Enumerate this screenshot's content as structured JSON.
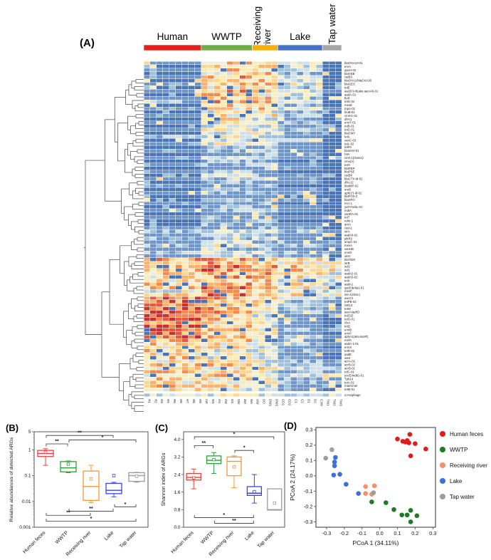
{
  "panels": {
    "a": "(A)",
    "b": "(B)",
    "c": "(C)",
    "d": "(D)"
  },
  "chart_data": [
    {
      "id": "heatmap",
      "type": "heatmap",
      "column_groups": [
        {
          "label": "Human",
          "color": "#e3211b",
          "samples": [
            "H1",
            "H2",
            "H3",
            "H4",
            "H5",
            "H6",
            "H7",
            "H8",
            "H9"
          ]
        },
        {
          "label": "WWTP",
          "color": "#6fad47",
          "samples": [
            "LW",
            "W1",
            "AS",
            "2W",
            "DS",
            "SW",
            "3W",
            "WA"
          ]
        },
        {
          "label": "Receiving river",
          "color": "#f2b10e",
          "samples": [
            "UW",
            "DO",
            "DW1",
            "DW2"
          ]
        },
        {
          "label": "Lake",
          "color": "#4472c4",
          "samples": [
            "CD1",
            "CD2",
            "C1",
            "C2",
            "D1",
            "D2",
            "CJW"
          ]
        },
        {
          "label": "Tap water",
          "color": "#a6a6a6",
          "samples": [
            "TW1",
            "TW2",
            "TW3"
          ]
        }
      ],
      "palette": [
        "#4a74b4",
        "#7096c7",
        "#9fc2da",
        "#cfe0e8",
        "#f3efd3",
        "#fdeab4",
        "#fcd693",
        "#fab26c",
        "#f28b52",
        "#e05b41",
        "#c43434"
      ],
      "legend_note": "",
      "rows": [
        [
          "blaOXA10-01",
          "16630"
        ],
        [
          "ereA",
          "06540"
        ],
        [
          "qacH-02",
          "16630"
        ],
        [
          "blaVEB",
          "05620"
        ],
        [
          "catB3",
          "17630"
        ],
        [
          "blaOXA1/blaOXA30",
          "06730"
        ],
        [
          "blaGES",
          "16640"
        ],
        [
          "tetE",
          "05520"
        ],
        [
          "aac(6')-Ib(aka aacA4)-01",
          "17631"
        ],
        [
          "aadA-01",
          "06530"
        ],
        [
          "floR",
          "16620"
        ],
        [
          "tetG-02",
          "27630"
        ],
        [
          "mexE",
          "06520"
        ],
        [
          "tnpA-01",
          "15631"
        ],
        [
          "lnuB-01",
          "04420"
        ],
        [
          "cmlA1-01",
          "15520"
        ],
        [
          "dfrA1",
          "05410"
        ],
        [
          "ermT-01",
          "14520"
        ],
        [
          "tetB-01",
          "04410"
        ],
        [
          "tetC-01",
          "14321"
        ],
        [
          "blaCMY",
          "03410"
        ],
        [
          "tetS",
          "24310"
        ],
        [
          "vanC-03",
          "03420"
        ],
        [
          "tetL-02",
          "14310"
        ],
        [
          "tetPA",
          "02210"
        ],
        [
          "blaSHV-01",
          "12310"
        ],
        [
          "folA",
          "01210"
        ],
        [
          "cintI-1(class1)",
          "13210"
        ],
        [
          "cmx(A)",
          "02100"
        ],
        [
          "tetH",
          "12310"
        ],
        [
          "blaPER",
          "01210"
        ],
        [
          "blaPSE",
          "12100"
        ],
        [
          "catB8",
          "03210"
        ],
        [
          "blaCTX-M-02",
          "12310"
        ],
        [
          "dfrA12",
          "02110"
        ],
        [
          "blaIMP-02",
          "11200"
        ],
        [
          "ereB",
          "02110"
        ],
        [
          "aph(2')-Id-02",
          "12210"
        ],
        [
          "blaFOX-2",
          "01100"
        ],
        [
          "blaSFO",
          "02110"
        ],
        [
          "mcr-1",
          "11200"
        ],
        [
          "yidY/mdtL-01",
          "02110"
        ],
        [
          "mdtA",
          "12210"
        ],
        [
          "vanRA-01",
          "01100"
        ],
        [
          "tetT",
          "12110"
        ],
        [
          "ndm-1",
          "01200"
        ],
        [
          "qnrA",
          "02110"
        ],
        [
          "catA1",
          "11210"
        ],
        [
          "strA",
          "23321"
        ],
        [
          "aadA9-01",
          "13210"
        ],
        [
          "pikR2",
          "22310"
        ],
        [
          "ampC-01",
          "13221"
        ],
        [
          "mexA",
          "24321"
        ],
        [
          "vanHB",
          "12210"
        ],
        [
          "emrD",
          "23321"
        ],
        [
          "oleC",
          "13210"
        ],
        [
          "blaTEM",
          "77765"
        ],
        [
          "strB",
          "67654"
        ],
        [
          "sul2",
          "78765"
        ],
        [
          "sul1",
          "68865"
        ],
        [
          "aadA2-01",
          "67754"
        ],
        [
          "aadA5-02",
          "57654"
        ],
        [
          "tetX",
          "56643"
        ],
        [
          "aadA1",
          "67654"
        ],
        [
          "qacEdelta1-01",
          "68754"
        ],
        [
          "mexF",
          "46643"
        ],
        [
          "intI-1(clinic)",
          "78754"
        ],
        [
          "aacC2",
          "87632"
        ],
        [
          "tetPB-01",
          "86521"
        ],
        [
          "IS613",
          "86524"
        ],
        [
          "tetW",
          "97521"
        ],
        [
          "aacA/aphD",
          "97521"
        ],
        [
          "tet(32)",
          "96410"
        ],
        [
          "tetO-01",
          "96410"
        ],
        [
          "cfxA",
          "85410"
        ],
        [
          "tetQ",
          "96410"
        ],
        [
          "ermB",
          "97521"
        ],
        [
          "ermF",
          "86410"
        ],
        [
          "aphA1(aka kanR)",
          "86521"
        ],
        [
          "mefA",
          "76410"
        ],
        [
          "aadA-1-01",
          "65421"
        ],
        [
          "ermX",
          "55310"
        ],
        [
          "tetR-02",
          "64421"
        ],
        [
          "aadE",
          "55310"
        ],
        [
          "sat4",
          "64310"
        ],
        [
          "acrA-02",
          "55422"
        ],
        [
          "acrB-02",
          "66421"
        ],
        [
          "acrB-01",
          "55532"
        ],
        [
          "tolC-01",
          "65421"
        ],
        [
          "yceE/mdtG-01",
          "56534"
        ],
        [
          "Tp614",
          "65421"
        ],
        [
          "tetA-02",
          "54521"
        ],
        [
          "matA/mel",
          "65410"
        ],
        [
          "tetM-01",
          "54310"
        ],
        [
          "crAssphage",
          "34423"
        ]
      ]
    },
    {
      "id": "box_abundance",
      "type": "box",
      "ylabel": "Relative abundances of detected ARGs",
      "yscale": "log",
      "ylim": [
        0.001,
        5
      ],
      "yticks": [
        "5",
        "1",
        "0.1",
        "0.01",
        "0.001"
      ],
      "ytick_values": [
        5,
        1,
        0.1,
        0.01,
        0.001
      ],
      "categories": [
        "Human feces",
        "WWTP",
        "Receiving river",
        "Lake",
        "Tap water"
      ],
      "colors": [
        "#e8413c",
        "#2e9e36",
        "#f79432",
        "#3545e8",
        "#9b9b9b"
      ],
      "boxes": [
        {
          "lo": 0.25,
          "q1": 0.55,
          "med": 0.72,
          "q3": 0.95,
          "hi": 1.1,
          "mean": 0.8
        },
        {
          "lo": 0.13,
          "q1": 0.14,
          "med": 0.2,
          "q3": 0.35,
          "hi": 0.37,
          "mean": 0.28
        },
        {
          "lo": 0.009,
          "q1": 0.011,
          "med": 0.038,
          "q3": 0.15,
          "hi": 0.25,
          "mean": 0.075
        },
        {
          "lo": 0.015,
          "q1": 0.02,
          "med": 0.027,
          "q3": 0.05,
          "hi": 0.055,
          "mean": 0.1
        },
        {
          "lo": 0.055,
          "q1": 0.06,
          "med": 0.1,
          "q3": 0.13,
          "hi": 0.135,
          "mean": 0.095
        }
      ],
      "significance": [
        {
          "a": 0,
          "b": 3,
          "stars": "**",
          "v": 3.6,
          "side": "top"
        },
        {
          "a": 1,
          "b": 4,
          "stars": "*",
          "v": 2.4,
          "side": "top"
        },
        {
          "a": 0,
          "b": 1,
          "stars": "**",
          "v": 1.7,
          "side": "top"
        },
        {
          "a": 3,
          "b": 4,
          "stars": "*",
          "v": 0.0062,
          "side": "bottom"
        },
        {
          "a": 1,
          "b": 3,
          "stars": "**",
          "v": 0.0042,
          "side": "bottom"
        },
        {
          "a": 0,
          "b": 2,
          "stars": "**",
          "v": 0.0029,
          "side": "bottom"
        },
        {
          "a": 0,
          "b": 4,
          "stars": "*",
          "v": 0.0017,
          "side": "bottom"
        }
      ]
    },
    {
      "id": "box_shannon",
      "type": "box",
      "ylabel": "Shannon index of ARGs",
      "yscale": "linear",
      "ylim": [
        0,
        4.35
      ],
      "yticks": [
        "0.0",
        "0.8",
        "1.6",
        "2.4",
        "3.2",
        "4.0"
      ],
      "ytick_values": [
        0,
        0.8,
        1.6,
        2.4,
        3.2,
        4.0
      ],
      "categories": [
        "Human feces",
        "WWTP",
        "Receiving river",
        "Lake",
        "Tap water"
      ],
      "colors": [
        "#e8413c",
        "#2e9e36",
        "#f79432",
        "#3545e8",
        "#9b9b9b"
      ],
      "boxes": [
        {
          "lo": 1.75,
          "q1": 2.15,
          "med": 2.27,
          "q3": 2.45,
          "hi": 2.65,
          "mean": 2.25
        },
        {
          "lo": 2.45,
          "q1": 2.9,
          "med": 3.05,
          "q3": 3.25,
          "hi": 3.4,
          "mean": 3.08
        },
        {
          "lo": 1.8,
          "q1": 2.35,
          "med": 3.0,
          "q3": 3.2,
          "hi": 3.25,
          "mean": 2.75
        },
        {
          "lo": 1.1,
          "q1": 1.45,
          "med": 1.55,
          "q3": 1.85,
          "hi": 2.4,
          "mean": 1.62
        },
        {
          "lo": 0.78,
          "q1": 0.78,
          "med": 0.8,
          "q3": 1.75,
          "hi": 1.75,
          "mean": 1.1
        }
      ],
      "significance": [
        {
          "a": 0,
          "b": 4,
          "stars": "*",
          "v": 4.12,
          "side": "top"
        },
        {
          "a": 0,
          "b": 1,
          "stars": "**",
          "v": 3.72,
          "side": "top"
        },
        {
          "a": 2,
          "b": 3,
          "stars": "*",
          "v": 3.5,
          "side": "top"
        },
        {
          "a": 0,
          "b": 3,
          "stars": "*",
          "v": 0.44,
          "side": "bottom"
        },
        {
          "a": 1,
          "b": 3,
          "stars": "**",
          "v": 0.18,
          "side": "bottom"
        }
      ]
    },
    {
      "id": "pcoa",
      "type": "scatter",
      "xlabel": "PCoA 1 (34.11%)",
      "ylabel": "PCoA 2 (24.17%)",
      "xlim": [
        -0.36,
        0.315
      ],
      "ylim": [
        -0.335,
        0.315
      ],
      "xticks": [
        "-0.3",
        "-0.2",
        "-0.1",
        "0.0",
        "0.1",
        "0.2",
        "0.3"
      ],
      "xtick_values": [
        -0.3,
        -0.2,
        -0.1,
        0,
        0.1,
        0.2,
        0.3
      ],
      "yticks": [
        "-0.3",
        "-0.2",
        "-0.1",
        "0.0",
        "0.1",
        "0.2",
        "0.3"
      ],
      "ytick_values": [
        -0.3,
        -0.2,
        -0.1,
        0,
        0.1,
        0.2,
        0.3
      ],
      "legend_position": "right",
      "series": [
        {
          "name": "Human feces",
          "color": "#e31a1c",
          "points": [
            [
              0.1,
              0.24
            ],
            [
              0.13,
              0.225
            ],
            [
              0.145,
              0.22
            ],
            [
              0.155,
              0.23
            ],
            [
              0.165,
              0.215
            ],
            [
              0.17,
              0.27
            ],
            [
              0.2,
              0.21
            ],
            [
              0.26,
              0.175
            ],
            [
              0.175,
              0.13
            ]
          ]
        },
        {
          "name": "WWTP",
          "color": "#1f7a28",
          "points": [
            [
              -0.045,
              -0.17
            ],
            [
              0.035,
              -0.175
            ],
            [
              0.08,
              -0.22
            ],
            [
              0.125,
              -0.255
            ],
            [
              0.155,
              -0.255
            ],
            [
              0.175,
              -0.225
            ],
            [
              0.21,
              -0.26
            ],
            [
              0.175,
              -0.3
            ]
          ]
        },
        {
          "name": "Receiving river",
          "color": "#f98e6d",
          "points": [
            [
              -0.08,
              -0.07
            ],
            [
              -0.03,
              -0.065
            ],
            [
              -0.08,
              -0.115
            ],
            [
              -0.045,
              -0.12
            ]
          ]
        },
        {
          "name": "Lake",
          "color": "#3c6fdd",
          "points": [
            [
              -0.25,
              0.12
            ],
            [
              -0.255,
              0.09
            ],
            [
              -0.255,
              0.065
            ],
            [
              -0.26,
              0.005
            ],
            [
              -0.225,
              0.01
            ],
            [
              -0.19,
              -0.055
            ],
            [
              -0.12,
              -0.115
            ]
          ]
        },
        {
          "name": "Tap water",
          "color": "#9e9e9e",
          "points": [
            [
              -0.305,
              0.115
            ],
            [
              -0.27,
              0.17
            ],
            [
              -0.035,
              -0.11
            ]
          ]
        }
      ]
    }
  ]
}
